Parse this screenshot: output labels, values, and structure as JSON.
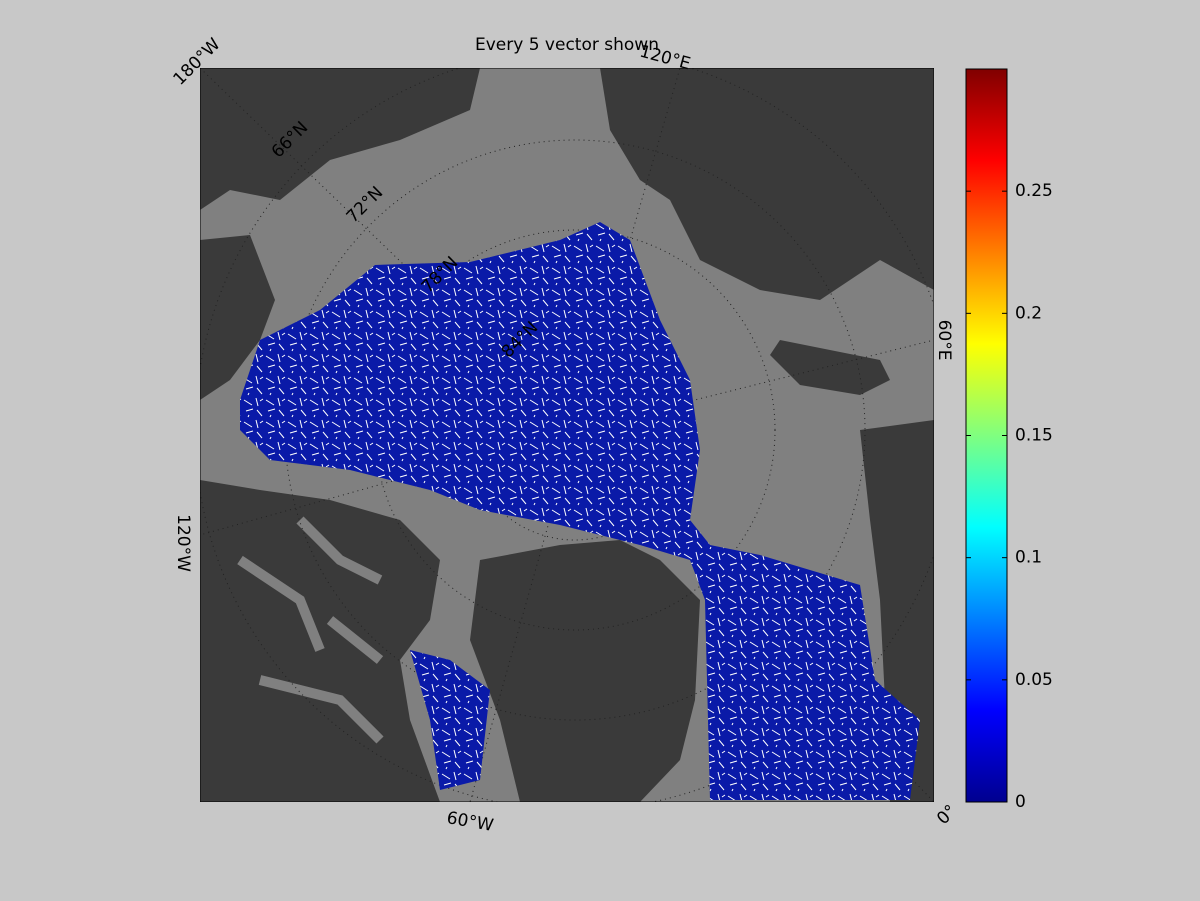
{
  "title": "Every 5 vector shown",
  "map_labels": {
    "lon": [
      "180°W",
      "120°E",
      "60°E",
      "0°",
      "60°W",
      "120°W"
    ],
    "lat": [
      "66°N",
      "72°N",
      "78°N",
      "84°N"
    ]
  },
  "colorbar": {
    "lim": [
      0,
      0.3
    ],
    "ticks": [
      0,
      0.05,
      0.1,
      0.15,
      0.2,
      0.25
    ]
  }
}
